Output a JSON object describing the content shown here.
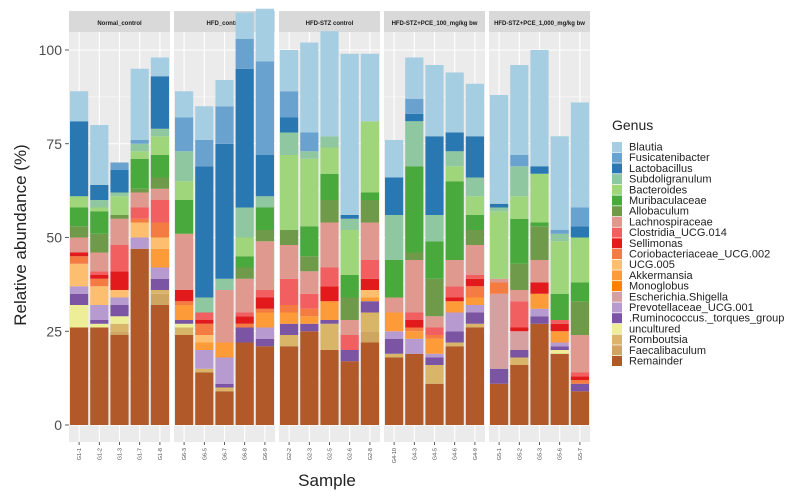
{
  "chart_data": {
    "type": "bar",
    "stacked": true,
    "ylabel": "Relative abundance (%)",
    "xlabel": "Sample",
    "ylim": [
      0,
      100
    ],
    "yticks": [
      0,
      25,
      50,
      75,
      100
    ],
    "legend_title": "Genus",
    "legend_position": "right",
    "genera": [
      {
        "name": "Blautia",
        "color": "#a6cee3"
      },
      {
        "name": "Fusicatenibacter",
        "color": "#6aa2cf"
      },
      {
        "name": "Lactobacillus",
        "color": "#2a78b2"
      },
      {
        "name": "Subdoligranulum",
        "color": "#8fc7a1"
      },
      {
        "name": "Bacteroides",
        "color": "#9fd67c"
      },
      {
        "name": "Muribaculaceae",
        "color": "#4aa93d"
      },
      {
        "name": "Allobaculum",
        "color": "#6f9a4a"
      },
      {
        "name": "Lachnospiraceae",
        "color": "#e0998f"
      },
      {
        "name": "Clostridia_UCG.014",
        "color": "#f25f60"
      },
      {
        "name": "Sellimonas",
        "color": "#e31a1c"
      },
      {
        "name": "Coriobacteriaceae_UCG.002",
        "color": "#f47b42"
      },
      {
        "name": "UCG.005",
        "color": "#fdbf6f"
      },
      {
        "name": "Akkermansia",
        "color": "#fd9b38"
      },
      {
        "name": "Monoglobus",
        "color": "#ff7f00"
      },
      {
        "name": "Escherichia.Shigella",
        "color": "#d7a0a0"
      },
      {
        "name": "Prevotellaceae_UCG.001",
        "color": "#b79ad0"
      },
      {
        "name": ".Ruminococcus._torques_group",
        "color": "#7b55a3"
      },
      {
        "name": "uncultured",
        "color": "#eeee99"
      },
      {
        "name": "Romboutsia",
        "color": "#d9b56a"
      },
      {
        "name": "Faecalibaculum",
        "color": "#cfa661"
      },
      {
        "name": "Remainder",
        "color": "#b15928"
      }
    ],
    "panels": [
      {
        "title": "Normal_control",
        "samples": [
          "G1-1",
          "G1-2",
          "G1-3",
          "G1-7",
          "G1-8"
        ],
        "values": [
          [
            8,
            16,
            0,
            19,
            5
          ],
          [
            0,
            0,
            2,
            1,
            0
          ],
          [
            20,
            4,
            6,
            0,
            14
          ],
          [
            0,
            2,
            1,
            2,
            2
          ],
          [
            3,
            1,
            5,
            2,
            5
          ],
          [
            5,
            6,
            0,
            8,
            6
          ],
          [
            3,
            5,
            1,
            1,
            3
          ],
          [
            4,
            5,
            7,
            4,
            3
          ],
          [
            0,
            1,
            7,
            3,
            6
          ],
          [
            1,
            1,
            5,
            0,
            0
          ],
          [
            2,
            2,
            0,
            1,
            4
          ],
          [
            6,
            5,
            2,
            4,
            3
          ],
          [
            0,
            0,
            0,
            0,
            5
          ],
          [
            0,
            0,
            0,
            0,
            0
          ],
          [
            0,
            0,
            0,
            0,
            0
          ],
          [
            2,
            4,
            2,
            3,
            3
          ],
          [
            3,
            1,
            3,
            0,
            3
          ],
          [
            6,
            1,
            2,
            0,
            0
          ],
          [
            0,
            0,
            2,
            0,
            1
          ],
          [
            0,
            0,
            1,
            0,
            3
          ],
          [
            26,
            26,
            24,
            47,
            32
          ]
        ]
      },
      {
        "title": "HFD_control",
        "samples": [
          "G6-3",
          "G6-5",
          "G6-7",
          "G6-8",
          "G6-9"
        ],
        "values": [
          [
            7,
            9,
            7,
            7,
            14
          ],
          [
            9,
            7,
            10,
            8,
            25
          ],
          [
            0,
            35,
            36,
            37,
            11
          ],
          [
            8,
            4,
            3,
            8,
            3
          ],
          [
            5,
            0,
            0,
            5,
            0
          ],
          [
            9,
            0,
            0,
            3,
            6
          ],
          [
            0,
            0,
            0,
            3,
            3
          ],
          [
            15,
            0,
            14,
            9,
            13
          ],
          [
            0,
            2,
            0,
            1,
            2
          ],
          [
            3,
            1,
            0,
            2,
            3
          ],
          [
            1,
            3,
            0,
            1,
            1
          ],
          [
            0,
            2,
            0,
            0,
            0
          ],
          [
            4,
            2,
            4,
            0,
            4
          ],
          [
            0,
            0,
            0,
            0,
            0
          ],
          [
            0,
            0,
            0,
            0,
            0
          ],
          [
            0,
            5,
            7,
            0,
            3
          ],
          [
            1,
            0,
            1,
            4,
            2
          ],
          [
            1,
            0,
            0,
            0,
            0
          ],
          [
            2,
            1,
            1,
            0,
            0
          ],
          [
            0,
            0,
            0,
            0,
            0
          ],
          [
            24,
            14,
            9,
            22,
            21
          ]
        ]
      },
      {
        "title": "HFD-STZ control",
        "samples": [
          "G2-2",
          "G2-3",
          "G2-5",
          "G2-6",
          "G2-8"
        ],
        "values": [
          [
            11,
            24,
            28,
            43,
            18
          ],
          [
            7,
            5,
            0,
            0,
            0
          ],
          [
            4,
            0,
            0,
            1,
            0
          ],
          [
            6,
            2,
            3,
            3,
            0
          ],
          [
            20,
            18,
            7,
            12,
            19
          ],
          [
            0,
            8,
            7,
            6,
            2
          ],
          [
            4,
            4,
            6,
            6,
            6
          ],
          [
            9,
            6,
            12,
            4,
            10
          ],
          [
            7,
            4,
            5,
            4,
            5
          ],
          [
            0,
            0,
            4,
            0,
            3
          ],
          [
            2,
            2,
            0,
            0,
            0
          ],
          [
            0,
            0,
            0,
            0,
            2
          ],
          [
            3,
            2,
            5,
            0,
            1
          ],
          [
            0,
            0,
            0,
            0,
            0
          ],
          [
            0,
            0,
            0,
            0,
            0
          ],
          [
            0,
            0,
            0,
            0,
            0
          ],
          [
            3,
            2,
            1,
            3,
            3
          ],
          [
            0,
            0,
            0,
            0,
            0
          ],
          [
            3,
            0,
            7,
            0,
            5
          ],
          [
            0,
            0,
            0,
            0,
            3
          ],
          [
            21,
            25,
            20,
            17,
            22
          ]
        ]
      },
      {
        "title": "HFD-STZ+PCE_100_mg/kg bw",
        "samples": [
          "G4-10",
          "G4-3",
          "G4-5",
          "G4-6",
          "G4-9"
        ],
        "values": [
          [
            10,
            11,
            19,
            16,
            14
          ],
          [
            0,
            4,
            0,
            0,
            0
          ],
          [
            10,
            2,
            21,
            5,
            11
          ],
          [
            12,
            12,
            7,
            4,
            5
          ],
          [
            0,
            0,
            0,
            4,
            5
          ],
          [
            10,
            23,
            10,
            21,
            4
          ],
          [
            0,
            2,
            10,
            0,
            4
          ],
          [
            4,
            14,
            3,
            7,
            8
          ],
          [
            0,
            2,
            2,
            3,
            1
          ],
          [
            0,
            2,
            0,
            1,
            2
          ],
          [
            0,
            1,
            1,
            0,
            3
          ],
          [
            0,
            0,
            0,
            0,
            0
          ],
          [
            5,
            2,
            4,
            3,
            2
          ],
          [
            0,
            0,
            0,
            0,
            0
          ],
          [
            0,
            0,
            0,
            0,
            0
          ],
          [
            2,
            4,
            1,
            5,
            2
          ],
          [
            4,
            0,
            2,
            3,
            3
          ],
          [
            0,
            0,
            0,
            0,
            0
          ],
          [
            1,
            0,
            5,
            1,
            1
          ],
          [
            0,
            0,
            0,
            0,
            0
          ],
          [
            18,
            19,
            11,
            21,
            26
          ]
        ]
      },
      {
        "title": "HFD-STZ+PCE_1,000_mg/kg bw",
        "samples": [
          "G5-1",
          "G5-2",
          "G5-3",
          "G5-6",
          "G5-7"
        ],
        "values": [
          [
            29,
            24,
            31,
            25,
            28
          ],
          [
            0,
            3,
            0,
            1,
            5
          ],
          [
            1,
            0,
            2,
            0,
            3
          ],
          [
            1,
            8,
            0,
            2,
            0
          ],
          [
            18,
            6,
            13,
            14,
            12
          ],
          [
            0,
            12,
            1,
            7,
            5
          ],
          [
            0,
            7,
            9,
            0,
            9
          ],
          [
            1,
            3,
            6,
            0,
            10
          ],
          [
            0,
            7,
            0,
            1,
            1
          ],
          [
            0,
            1,
            3,
            2,
            1
          ],
          [
            3,
            0,
            0,
            0,
            1
          ],
          [
            0,
            0,
            0,
            0,
            0
          ],
          [
            0,
            0,
            4,
            3,
            0
          ],
          [
            0,
            0,
            0,
            0,
            0
          ],
          [
            20,
            5,
            0,
            0,
            0
          ],
          [
            0,
            0,
            2,
            1,
            0
          ],
          [
            4,
            2,
            2,
            1,
            2
          ],
          [
            0,
            0,
            0,
            1,
            0
          ],
          [
            0,
            2,
            0,
            0,
            0
          ],
          [
            0,
            0,
            0,
            0,
            0
          ],
          [
            11,
            16,
            27,
            19,
            9
          ]
        ]
      }
    ]
  }
}
